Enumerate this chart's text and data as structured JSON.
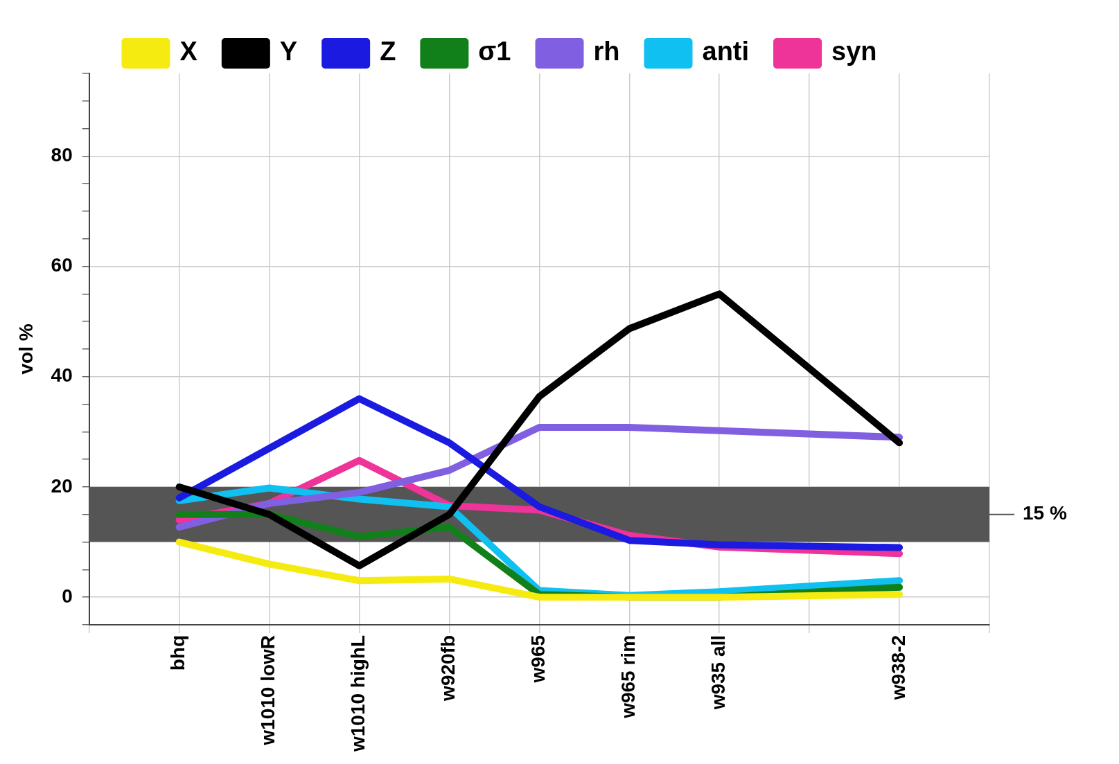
{
  "chart_data": {
    "type": "line",
    "ylabel": "vol %",
    "categories": [
      "bhq",
      "w1010 lowR",
      "w1010 highL",
      "w920fb",
      "w965",
      "w965 rim",
      "w935 all",
      null,
      "w938-2"
    ],
    "series": [
      {
        "name": "X",
        "color": "#f5eb10",
        "values": [
          10,
          6,
          3,
          3.3,
          0,
          0,
          0,
          null,
          0.5
        ]
      },
      {
        "name": "Y",
        "color": "#000000",
        "values": [
          20,
          15,
          5.7,
          15,
          36.4,
          48.7,
          55,
          null,
          28
        ]
      },
      {
        "name": "Z",
        "color": "#1a1ae0",
        "values": [
          18,
          27,
          36,
          28,
          16.4,
          10.3,
          9.5,
          null,
          9
        ]
      },
      {
        "name": "σ1",
        "color": "#12801a",
        "values": [
          15,
          15,
          11,
          12.7,
          0.5,
          0,
          0,
          null,
          1.8
        ]
      },
      {
        "name": "rh",
        "color": "#8060e0",
        "values": [
          12.7,
          17,
          19,
          23,
          30.8,
          30.8,
          30.2,
          null,
          29
        ]
      },
      {
        "name": "anti",
        "color": "#10c0f0",
        "values": [
          17.5,
          19.8,
          17.8,
          16.4,
          1.2,
          0.3,
          1,
          null,
          3
        ]
      },
      {
        "name": "syn",
        "color": "#ee3399",
        "values": [
          14,
          17,
          24.8,
          16.6,
          15.8,
          11.2,
          9.1,
          null,
          7.9
        ]
      }
    ],
    "ylim": [
      -5,
      95
    ],
    "yticks": [
      0,
      20,
      40,
      60,
      80
    ],
    "bands": [
      {
        "axis": "y",
        "from": 10,
        "to": 20,
        "label": "15 %",
        "color": "#555555"
      }
    ],
    "grid": true,
    "legend": "top",
    "marker": "none",
    "line_style": "solid"
  }
}
